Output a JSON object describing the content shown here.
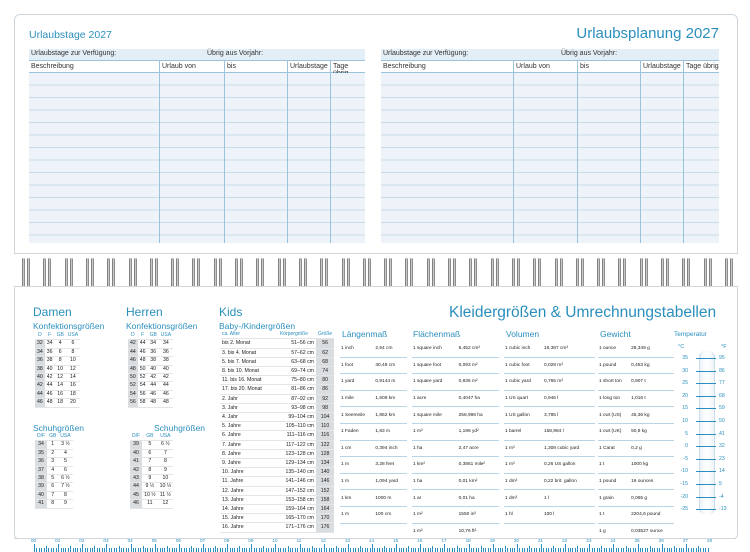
{
  "top": {
    "left_title": "Urlaubstage 2027",
    "right_title": "Urlaubsplanung 2027",
    "pane_header_available": "Urlaubstage zur Verfügung:",
    "pane_header_remaining": "Übrig aus Vorjahr:",
    "columns": [
      "Beschreibung",
      "Urlaub von",
      "bis",
      "Urlaubstage",
      "Tage übrig"
    ]
  },
  "bottom": {
    "title": "Kleidergrößen & Umrechnungstabellen",
    "damen": {
      "heading": "Damen",
      "konf_heading": "Konfektionsgrößen",
      "konf_cols": [
        "D",
        "F",
        "GB",
        "USA"
      ],
      "konf_rows": [
        [
          "32",
          "34",
          "4",
          "6"
        ],
        [
          "34",
          "36",
          "6",
          "8"
        ],
        [
          "36",
          "38",
          "8",
          "10"
        ],
        [
          "38",
          "40",
          "10",
          "12"
        ],
        [
          "40",
          "42",
          "12",
          "14"
        ],
        [
          "42",
          "44",
          "14",
          "16"
        ],
        [
          "44",
          "46",
          "16",
          "18"
        ],
        [
          "46",
          "48",
          "18",
          "20"
        ]
      ],
      "schuh_heading": "Schuhgrößen",
      "schuh_cols": [
        "D/F",
        "GB",
        "USA"
      ],
      "schuh_rows": [
        [
          "34",
          "1",
          "3 ½"
        ],
        [
          "35",
          "2",
          "4"
        ],
        [
          "36",
          "3",
          "5"
        ],
        [
          "37",
          "4",
          "6"
        ],
        [
          "38",
          "5",
          "6 ½"
        ],
        [
          "39",
          "6",
          "7 ½"
        ],
        [
          "40",
          "7",
          "8"
        ],
        [
          "41",
          "8",
          "9"
        ]
      ]
    },
    "herren": {
      "heading": "Herren",
      "konf_heading": "Konfektionsgrößen",
      "konf_cols": [
        "D",
        "F",
        "GB",
        "USA"
      ],
      "konf_rows": [
        [
          "42",
          "44",
          "34",
          "34"
        ],
        [
          "44",
          "46",
          "36",
          "36"
        ],
        [
          "46",
          "48",
          "38",
          "38"
        ],
        [
          "48",
          "50",
          "40",
          "40"
        ],
        [
          "50",
          "52",
          "42",
          "42"
        ],
        [
          "52",
          "54",
          "44",
          "44"
        ],
        [
          "54",
          "56",
          "46",
          "46"
        ],
        [
          "56",
          "58",
          "48",
          "48"
        ]
      ],
      "schuh_heading": "Schuhgrößen",
      "schuh_cols": [
        "D/F",
        "GB",
        "USA"
      ],
      "schuh_rows": [
        [
          "39",
          "5",
          "6 ½"
        ],
        [
          "40",
          "6",
          "7"
        ],
        [
          "41",
          "7",
          "8"
        ],
        [
          "42",
          "8",
          "9"
        ],
        [
          "43",
          "9",
          "10"
        ],
        [
          "44",
          "9 ½",
          "10 ½"
        ],
        [
          "45",
          "10 ½",
          "11 ½"
        ],
        [
          "46",
          "11",
          "12"
        ]
      ]
    },
    "kids": {
      "heading": "Kids",
      "sub_heading": "Baby-/Kindergrößen",
      "cols": [
        "ca. Alter",
        "Körpergröße",
        "Größe"
      ],
      "rows": [
        [
          "bis 2. Monat",
          "51–56 cm",
          "56"
        ],
        [
          "3. bis 4. Monat",
          "57–62 cm",
          "62"
        ],
        [
          "5. bis 7. Monat",
          "63–68 cm",
          "68"
        ],
        [
          "8. bis 10. Monat",
          "69–74 cm",
          "74"
        ],
        [
          "11. bis 16. Monat",
          "75–80 cm",
          "80"
        ],
        [
          "17. bis 20. Monat",
          "81–86 cm",
          "86"
        ],
        [
          "2. Jahr",
          "87–92 cm",
          "92"
        ],
        [
          "3. Jahr",
          "93–98 cm",
          "98"
        ],
        [
          "4. Jahr",
          "99–104 cm",
          "104"
        ],
        [
          "5. Jahre",
          "105–110 cm",
          "110"
        ],
        [
          "6. Jahre",
          "111–116 cm",
          "116"
        ],
        [
          "7. Jahre",
          "117–122 cm",
          "122"
        ],
        [
          "8. Jahre",
          "123–128 cm",
          "128"
        ],
        [
          "9. Jahre",
          "129–134 cm",
          "134"
        ],
        [
          "10. Jahre",
          "135–140 cm",
          "140"
        ],
        [
          "11. Jahre",
          "141–146 cm",
          "146"
        ],
        [
          "12. Jahre",
          "147–152 cm",
          "152"
        ],
        [
          "13. Jahre",
          "153–158 cm",
          "158"
        ],
        [
          "14. Jahre",
          "159–164 cm",
          "164"
        ],
        [
          "15. Jahre",
          "165–170 cm",
          "170"
        ],
        [
          "16. Jahre",
          "171–176 cm",
          "176"
        ]
      ]
    },
    "laengenmass": {
      "heading": "Längenmaß",
      "rows": [
        [
          "1 inch",
          "2,54 cm"
        ],
        [
          "1 foot",
          "30,48 cm"
        ],
        [
          "1 yard",
          "0,9144 m"
        ],
        [
          "1 mile",
          "1,609 km"
        ],
        [
          "1 Seemeile",
          "1,852 km"
        ],
        [
          "1 Faden",
          "1,83 m"
        ],
        [
          "1 cm",
          "0,394 inch"
        ],
        [
          "1 m",
          "3,28 feet"
        ],
        [
          "1 m",
          "1,094 yard"
        ],
        [
          "1 km",
          "1000 m"
        ],
        [
          "1 m",
          "100 cm"
        ]
      ]
    },
    "flaechenmass": {
      "heading": "Flächenmaß",
      "rows": [
        [
          "1 square inch",
          "6,452 cm²"
        ],
        [
          "1 square foot",
          "0,093 m²"
        ],
        [
          "1 square yard",
          "0,836 m²"
        ],
        [
          "1 acre",
          "0,4047 ha"
        ],
        [
          "1 square mile",
          "258,998 ha"
        ],
        [
          "1 m²",
          "1,196 yd²"
        ],
        [
          "1 ha",
          "2,47 acre"
        ],
        [
          "1 km²",
          "0,3861 mile²"
        ],
        [
          "1 ha",
          "0,01 km²"
        ],
        [
          "1 ar",
          "0,01 ha"
        ],
        [
          "1 m²",
          "1550 in²"
        ],
        [
          "1 m²",
          "10,76 ft²"
        ]
      ]
    },
    "volumen": {
      "heading": "Volumen",
      "rows": [
        [
          "1 cubic inch",
          "16,387 cm³"
        ],
        [
          "1 cubic foot",
          "0,028 m³"
        ],
        [
          "1 cubic yard",
          "0,765 m³"
        ],
        [
          "1 US quart",
          "0,946 l"
        ],
        [
          "1 US gallon",
          "3,785 l"
        ],
        [
          "1 barrel",
          "158,984 l"
        ],
        [
          "1 m³",
          "1,308 cubic yard"
        ],
        [
          "1 m³",
          "0,26 US gallon"
        ],
        [
          "1 dm³",
          "0,22 brit. gallon"
        ],
        [
          "1 dm³",
          "1 l"
        ],
        [
          "1 hl",
          "100 l"
        ]
      ]
    },
    "gewicht": {
      "heading": "Gewicht",
      "rows": [
        [
          "1 ounce",
          "28,349 g"
        ],
        [
          "1 pound",
          "0,453 kg"
        ],
        [
          "1 short ton",
          "0,907 t"
        ],
        [
          "1 long ton",
          "1,016 t"
        ],
        [
          "1 cwt (US)",
          "45,36 kg"
        ],
        [
          "1 cwt (UK)",
          "50,8 kg"
        ],
        [
          "1 Carat",
          "0,2 g"
        ],
        [
          "1 t",
          "1000 kg"
        ],
        [
          "1 pound",
          "16 ounces"
        ],
        [
          "1 grain",
          "0,065 g"
        ],
        [
          "1 t",
          "2204,6 pound"
        ],
        [
          "1 g",
          "0,03527 ounce"
        ]
      ]
    },
    "temperatur": {
      "heading": "Temperatur",
      "unit_c": "°C",
      "unit_f": "°F",
      "celsius": [
        "35",
        "30",
        "25",
        "20",
        "15",
        "10",
        "5",
        "0",
        "-5",
        "-10",
        "-15",
        "-20",
        "-25"
      ],
      "fahrenheit": [
        "95",
        "86",
        "77",
        "68",
        "59",
        "50",
        "41",
        "32",
        "23",
        "14",
        "5",
        "-4",
        "-13"
      ]
    },
    "ruler_labels": [
      "00",
      "01",
      "02",
      "03",
      "04",
      "05",
      "06",
      "07",
      "08",
      "09",
      "10",
      "11",
      "12",
      "13",
      "14",
      "15",
      "16",
      "17",
      "18",
      "19",
      "20",
      "21",
      "22",
      "23",
      "24",
      "25",
      "26",
      "27",
      "28"
    ]
  },
  "colors": {
    "accent": "#2a8fbd",
    "row_fill": "#edf3f8",
    "shade": "#d9dde0"
  }
}
